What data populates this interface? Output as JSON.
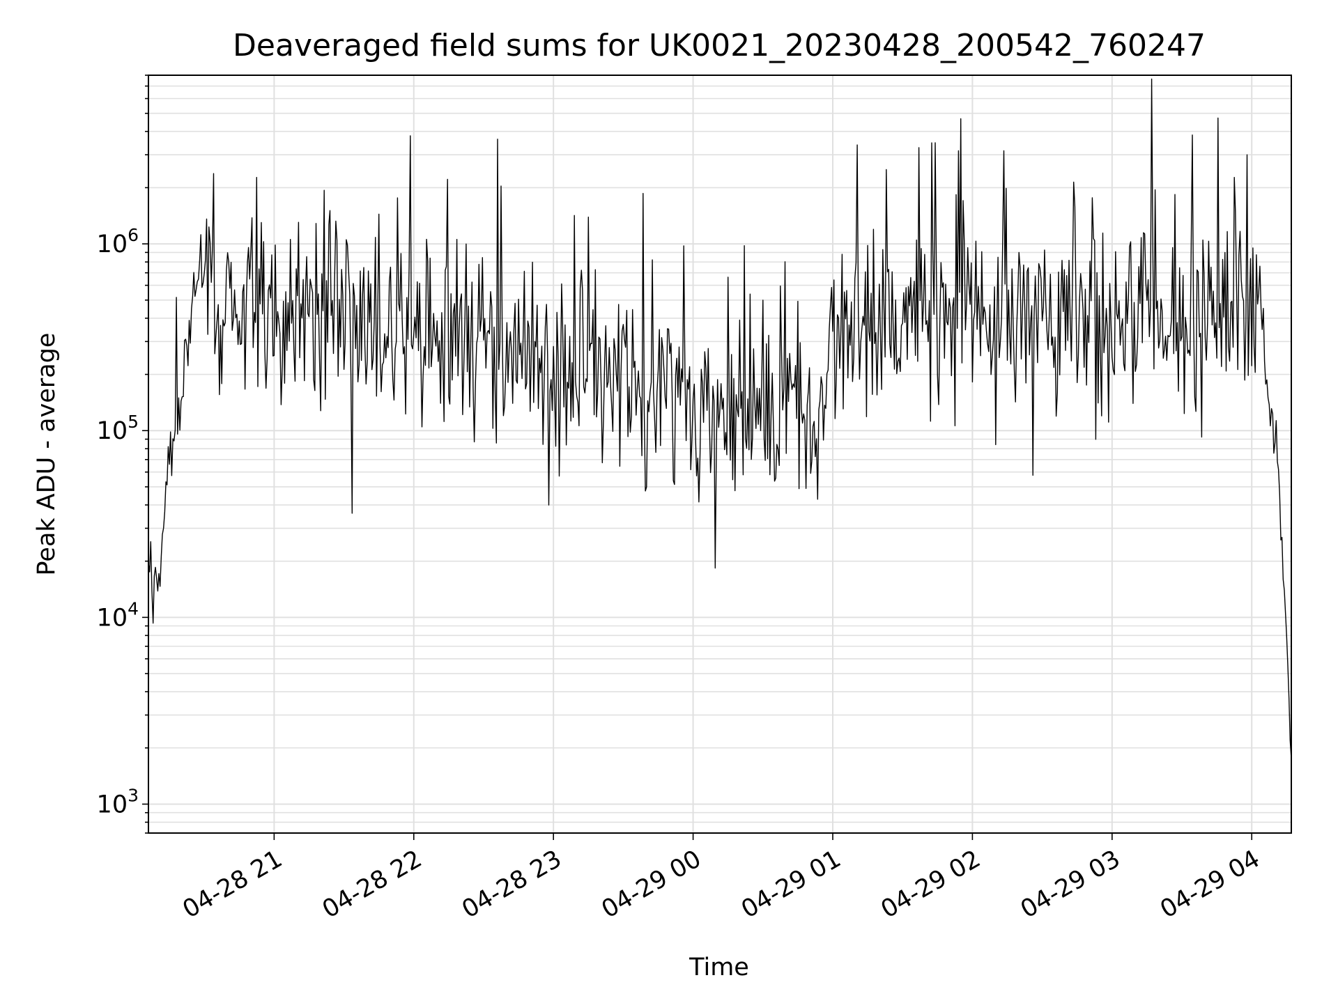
{
  "chart_data": {
    "type": "line",
    "title": "Deaveraged field sums for UK0021_20230428_200542_760247",
    "xlabel": "Time",
    "ylabel": "Peak ADU - average",
    "y_scale": "log",
    "ylim": [
      700,
      8000000
    ],
    "xlim": [
      "04-28 20:06",
      "04-29 04:17"
    ],
    "grid": true,
    "line_color": "#000000",
    "grid_color": "#e0e0e0",
    "x_ticks": [
      {
        "t": "04-28 21:00",
        "label": "04-28 21"
      },
      {
        "t": "04-28 22:00",
        "label": "04-28 22"
      },
      {
        "t": "04-28 23:00",
        "label": "04-28 23"
      },
      {
        "t": "04-29 00:00",
        "label": "04-29 00"
      },
      {
        "t": "04-29 01:00",
        "label": "04-29 01"
      },
      {
        "t": "04-29 02:00",
        "label": "04-29 02"
      },
      {
        "t": "04-29 03:00",
        "label": "04-29 03"
      },
      {
        "t": "04-29 04:00",
        "label": "04-29 04"
      }
    ],
    "y_ticks": [
      {
        "value": 1000,
        "base": "10",
        "exp": "3"
      },
      {
        "value": 10000,
        "base": "10",
        "exp": "4"
      },
      {
        "value": 100000,
        "base": "10",
        "exp": "5"
      },
      {
        "value": 1000000,
        "base": "10",
        "exp": "6"
      }
    ],
    "series": [
      {
        "x": [
          "04-28 20:06",
          "04-28 20:08",
          "04-28 20:10",
          "04-28 20:12",
          "04-28 20:14",
          "04-28 20:16",
          "04-28 20:18",
          "04-28 20:20",
          "04-28 20:22",
          "04-28 20:25",
          "04-28 20:28",
          "04-28 20:31",
          "04-28 20:33",
          "04-28 20:35",
          "04-28 20:38",
          "04-28 20:42",
          "04-28 20:46",
          "04-28 20:50",
          "04-28 20:55",
          "04-28 21:00",
          "04-28 21:10",
          "04-28 21:20",
          "04-28 21:30",
          "04-28 21:40",
          "04-28 21:50",
          "04-28 22:00",
          "04-28 22:15",
          "04-28 22:30",
          "04-28 22:45",
          "04-28 23:00",
          "04-28 23:15",
          "04-28 23:30",
          "04-28 23:45",
          "04-29 00:00",
          "04-29 00:15",
          "04-29 00:30",
          "04-29 00:45",
          "04-29 00:55",
          "04-29 01:00",
          "04-29 01:15",
          "04-29 01:30",
          "04-29 01:45",
          "04-29 02:00",
          "04-29 02:15",
          "04-29 02:30",
          "04-29 02:45",
          "04-29 03:00",
          "04-29 03:15",
          "04-29 03:30",
          "04-29 03:45",
          "04-29 03:55",
          "04-29 04:00",
          "04-29 04:05",
          "04-29 04:08",
          "04-29 04:11",
          "04-29 04:14",
          "04-29 04:17"
        ],
        "y": [
          22000,
          13000,
          17000,
          30000,
          60000,
          90000,
          110000,
          150000,
          250000,
          550000,
          800000,
          600000,
          550000,
          500000,
          550000,
          450000,
          500000,
          520000,
          480000,
          450000,
          420000,
          400000,
          380000,
          350000,
          340000,
          320000,
          260000,
          230000,
          220000,
          200000,
          190000,
          170000,
          160000,
          140000,
          125000,
          120000,
          115000,
          110000,
          500000,
          450000,
          380000,
          400000,
          420000,
          450000,
          400000,
          380000,
          350000,
          380000,
          420000,
          450000,
          500000,
          600000,
          250000,
          130000,
          70000,
          15000,
          1700
        ]
      }
    ],
    "annotations": [],
    "noise": {
      "seed": 21,
      "spikes_per_hour": 120,
      "typical_spike_factor": 3
    }
  }
}
